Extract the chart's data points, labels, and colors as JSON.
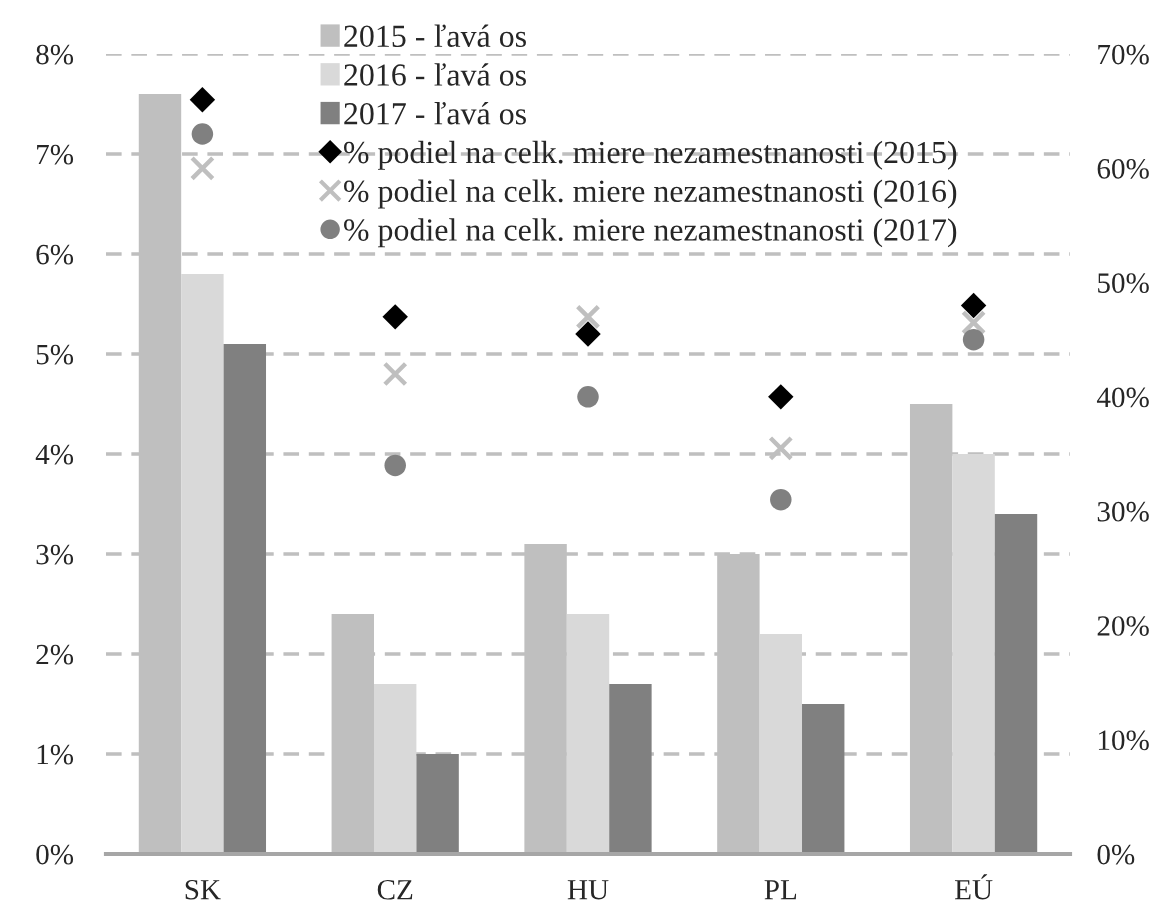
{
  "chart_data": {
    "type": "bar",
    "categories": [
      "SK",
      "CZ",
      "HU",
      "PL",
      "EÚ"
    ],
    "series": [
      {
        "name": "2015 - ľavá os",
        "color": "#bfbfbf",
        "values": [
          7.6,
          2.4,
          3.1,
          3.0,
          4.5
        ]
      },
      {
        "name": "2016 - ľavá os",
        "color": "#d9d9d9",
        "values": [
          5.8,
          1.7,
          2.4,
          2.2,
          4.0
        ]
      },
      {
        "name": "2017 - ľavá os",
        "color": "#808080",
        "values": [
          5.1,
          1.0,
          1.7,
          1.5,
          3.4
        ]
      },
      {
        "name": "% podiel na celk. miere nezamestnanosti (2015)",
        "type": "scatter",
        "axis": "y2",
        "marker": "diamond",
        "color": "#000000",
        "values": [
          66,
          47,
          45.5,
          40,
          48
        ]
      },
      {
        "name": "% podiel na celk. miere nezamestnanosti (2016)",
        "type": "scatter",
        "axis": "y2",
        "marker": "cross",
        "color": "#bfbfbf",
        "values": [
          60,
          42,
          47,
          35.5,
          46.5
        ]
      },
      {
        "name": "% podiel na celk. miere nezamestnanosti (2017)",
        "type": "scatter",
        "axis": "y2",
        "marker": "circle",
        "color": "#808080",
        "values": [
          63,
          34,
          40,
          31,
          45
        ]
      }
    ],
    "ylim": [
      0,
      8
    ],
    "yticks": [
      {
        "value": 0,
        "label": "0%"
      },
      {
        "value": 1,
        "label": "1%"
      },
      {
        "value": 2,
        "label": "2%"
      },
      {
        "value": 3,
        "label": "3%"
      },
      {
        "value": 4,
        "label": "4%"
      },
      {
        "value": 5,
        "label": "5%"
      },
      {
        "value": 6,
        "label": "6%"
      },
      {
        "value": 7,
        "label": "7%"
      },
      {
        "value": 8,
        "label": "8%"
      }
    ],
    "y2lim": [
      0,
      70
    ],
    "y2ticks": [
      {
        "value": 0,
        "label": "0%"
      },
      {
        "value": 10,
        "label": "10%"
      },
      {
        "value": 20,
        "label": "20%"
      },
      {
        "value": 30,
        "label": "30%"
      },
      {
        "value": 40,
        "label": "40%"
      },
      {
        "value": 50,
        "label": "50%"
      },
      {
        "value": 60,
        "label": "60%"
      },
      {
        "value": 70,
        "label": "70%"
      }
    ],
    "grid": "y",
    "legend": "top"
  }
}
